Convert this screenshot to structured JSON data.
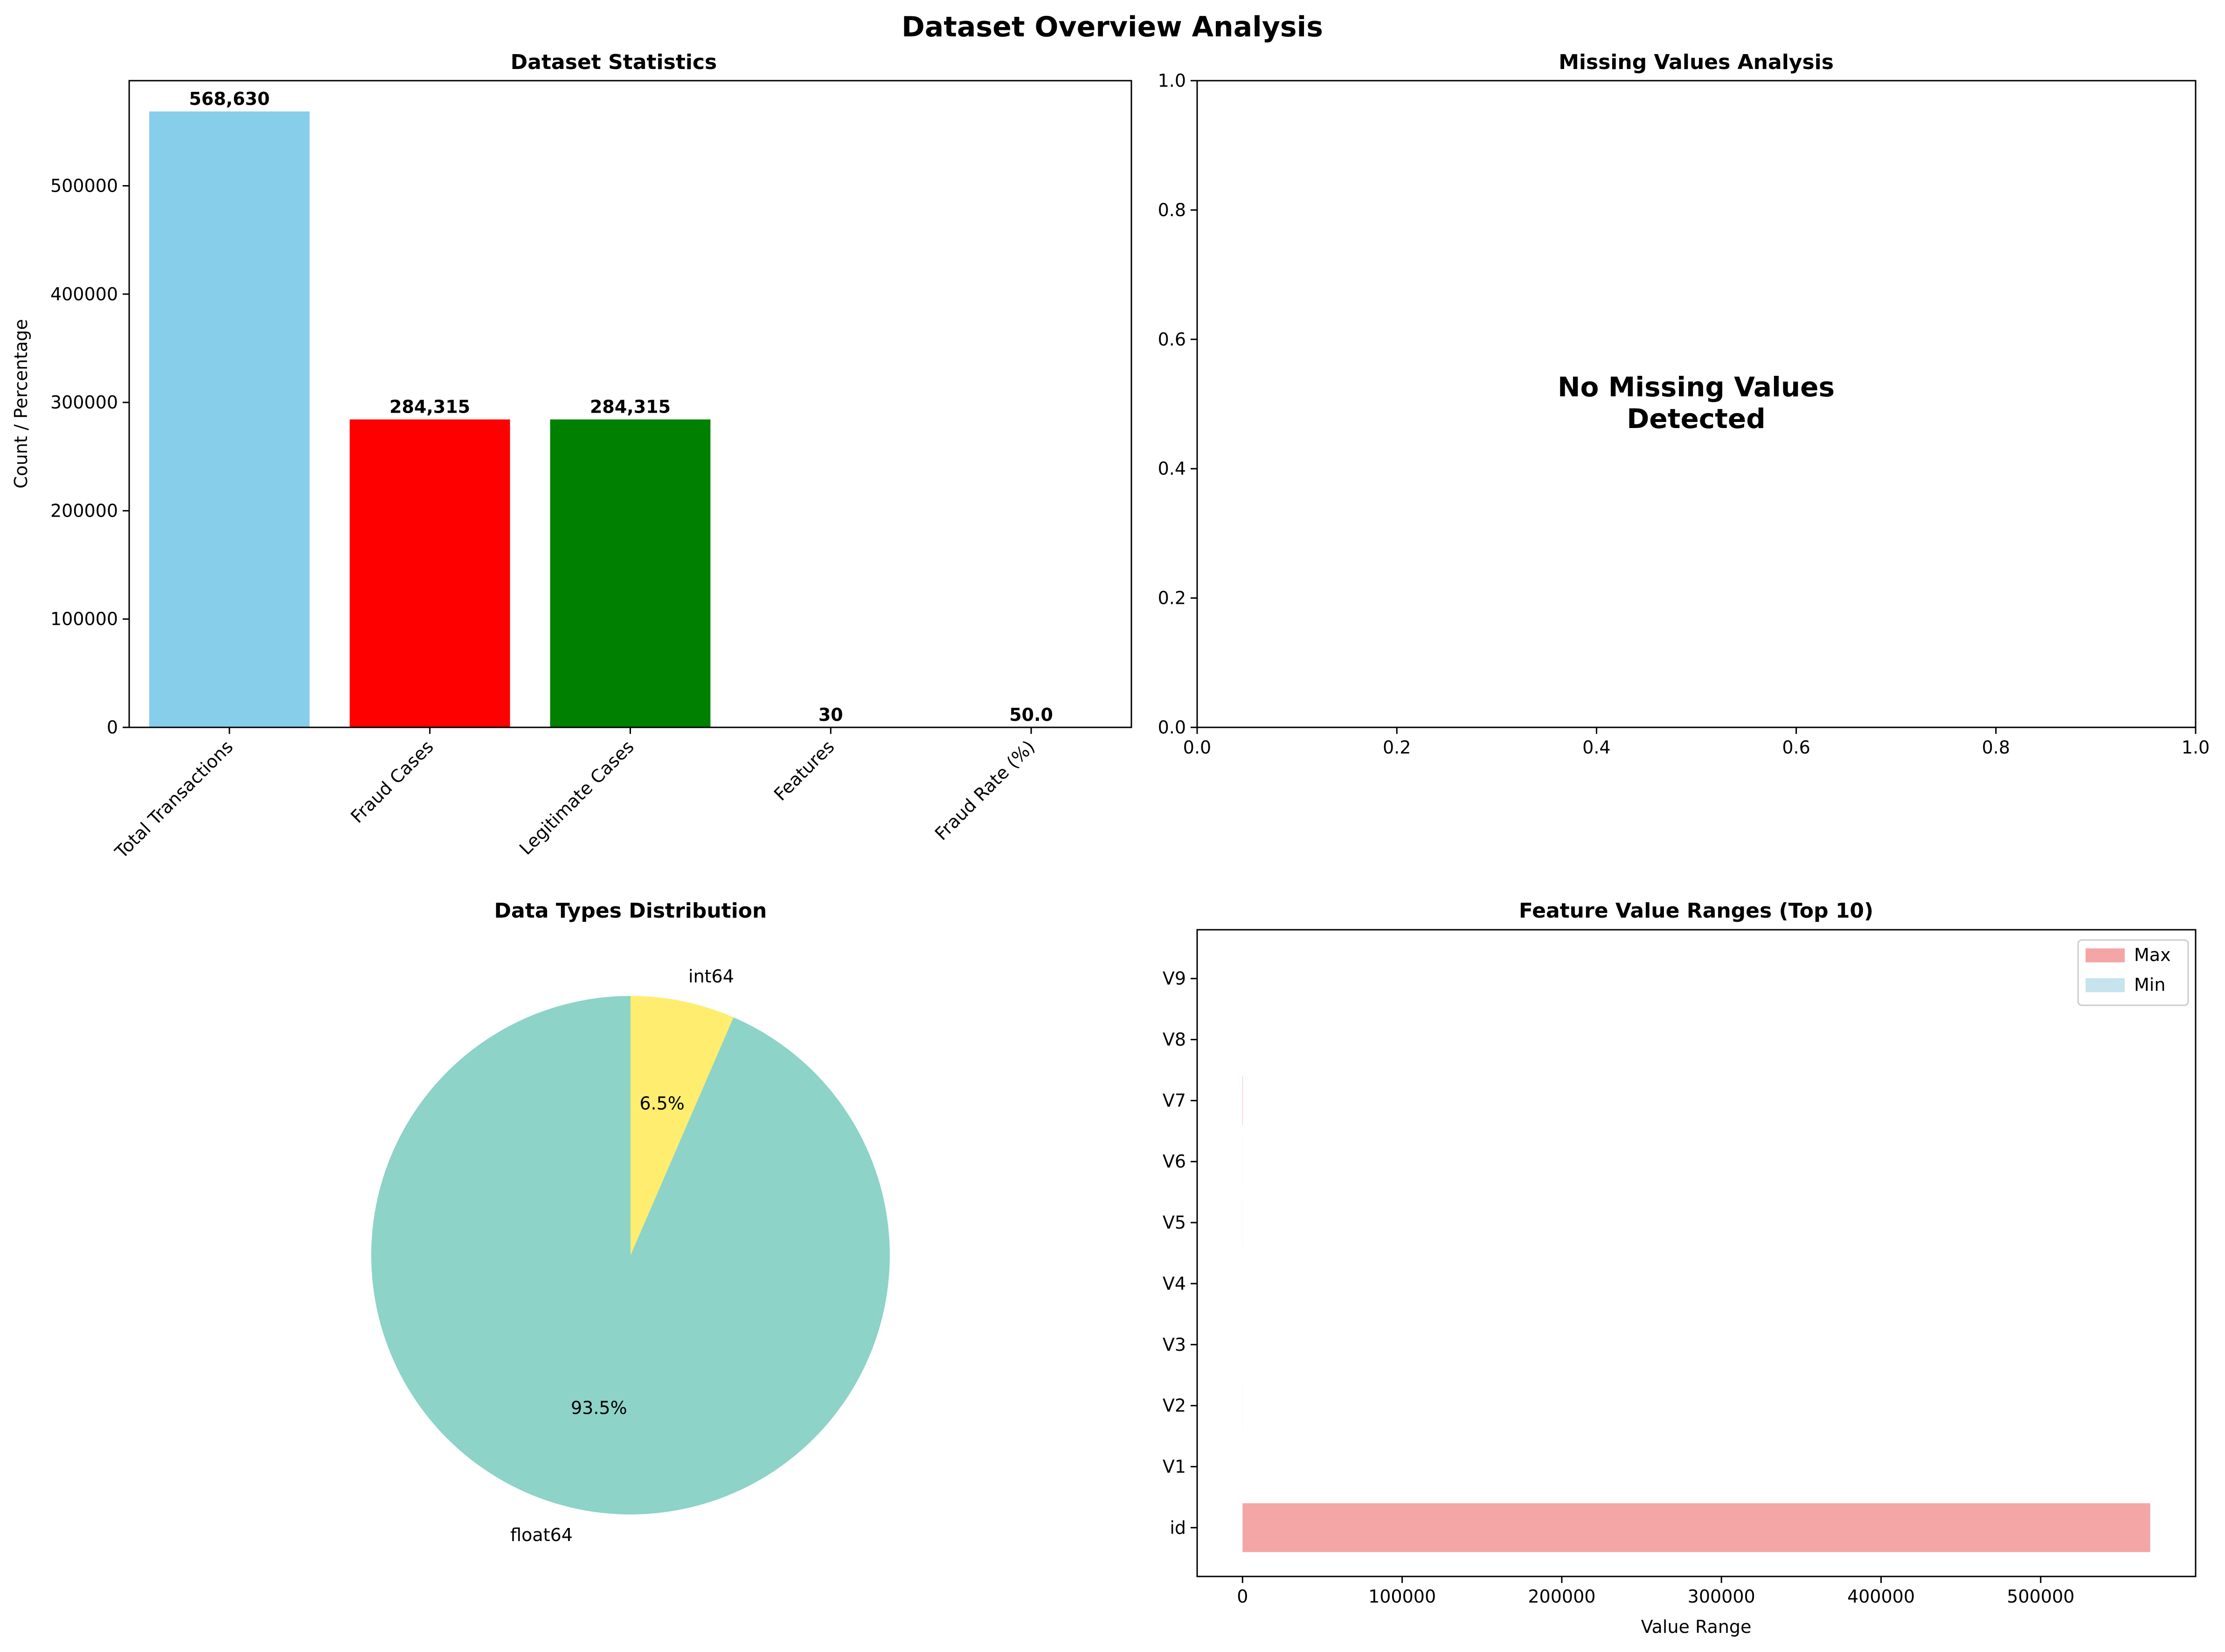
{
  "figure": {
    "title": "Dataset Overview Analysis"
  },
  "chart_data": [
    {
      "type": "bar",
      "title": "Dataset Statistics",
      "xlabel": "",
      "ylabel": "Count / Percentage",
      "categories": [
        "Total Transactions",
        "Fraud Cases",
        "Legitimate Cases",
        "Features",
        "Fraud Rate (%)"
      ],
      "values": [
        568630,
        284315,
        284315,
        30,
        50.0
      ],
      "value_labels": [
        "568,630",
        "284,315",
        "284,315",
        "30",
        "50.0"
      ],
      "colors": [
        "#87ceeb",
        "#ff0000",
        "#008000",
        "#ffff00",
        "#800080"
      ],
      "ylim": [
        0,
        597062
      ],
      "yticks": [
        0,
        100000,
        200000,
        300000,
        400000,
        500000
      ],
      "ytick_labels": [
        "0",
        "100000",
        "200000",
        "300000",
        "400000",
        "500000"
      ]
    },
    {
      "type": "text",
      "title": "Missing Values Analysis",
      "message_lines": [
        "No Missing Values",
        "Detected"
      ],
      "xlim": [
        0,
        1
      ],
      "ylim": [
        0,
        1
      ],
      "xticks": [
        0,
        0.2,
        0.4,
        0.6,
        0.8,
        1.0
      ],
      "xtick_labels": [
        "0.0",
        "0.2",
        "0.4",
        "0.6",
        "0.8",
        "1.0"
      ],
      "yticks": [
        0,
        0.2,
        0.4,
        0.6,
        0.8,
        1.0
      ],
      "ytick_labels": [
        "0.0",
        "0.2",
        "0.4",
        "0.6",
        "0.8",
        "1.0"
      ]
    },
    {
      "type": "pie",
      "title": "Data Types Distribution",
      "labels": [
        "float64",
        "int64"
      ],
      "values": [
        93.5,
        6.5
      ],
      "pct_labels": [
        "93.5%",
        "6.5%"
      ],
      "colors": [
        "#8dd3c7",
        "#ffed6f"
      ],
      "start_angle": 90,
      "direction": "counterclockwise"
    },
    {
      "type": "barh",
      "title": "Feature Value Ranges (Top 10)",
      "xlabel": "Value Range",
      "ylabel": "",
      "categories": [
        "id",
        "V1",
        "V2",
        "V3",
        "V4",
        "V5",
        "V6",
        "V7",
        "V8",
        "V9"
      ],
      "series": [
        {
          "name": "Max",
          "color": "#f08080",
          "opacity": 0.7,
          "values": [
            568629,
            2.23,
            4.36,
            14.13,
            3.2,
            42.72,
            26.17,
            217.87,
            5.96,
            20.27
          ]
        },
        {
          "name": "Min",
          "color": "#add8e6",
          "opacity": 0.7,
          "values": [
            0,
            -3.5,
            -49.97,
            -3.18,
            -4.95,
            -9.95,
            -21.11,
            -4.35,
            -10.76,
            -3.75
          ]
        }
      ],
      "xlim": [
        -28431,
        597060
      ],
      "xticks": [
        0,
        100000,
        200000,
        300000,
        400000,
        500000
      ],
      "xtick_labels": [
        "0",
        "100000",
        "200000",
        "300000",
        "400000",
        "500000"
      ],
      "legend_placement": "top-right"
    }
  ]
}
